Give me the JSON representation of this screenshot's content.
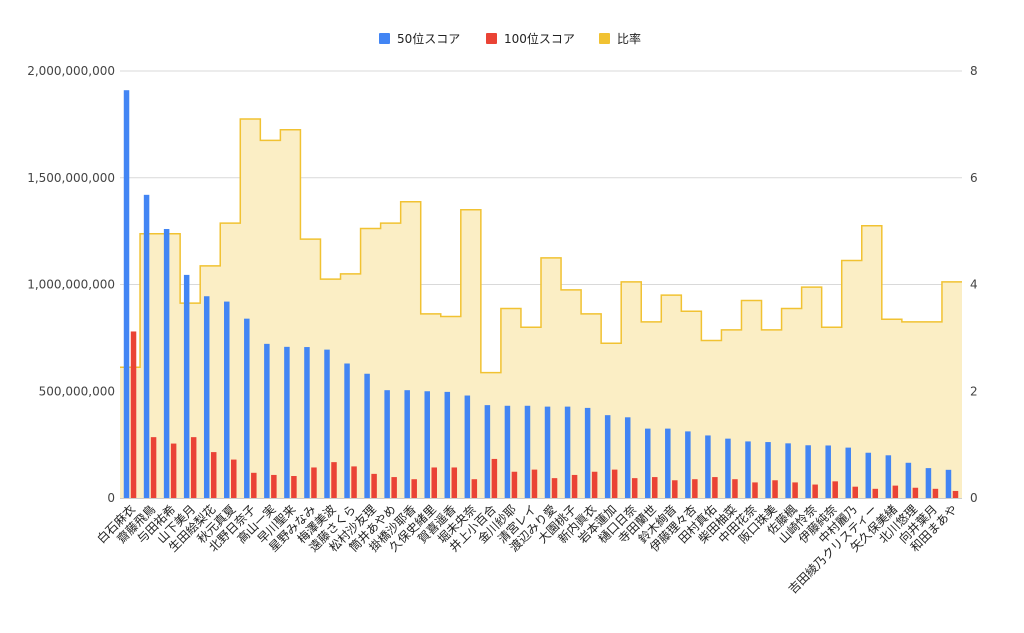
{
  "chart_data": {
    "type": "bar",
    "legend_position": "top",
    "grid": true,
    "colors": {
      "s50": "#4285f4",
      "s100": "#ea4335",
      "ratio_line": "#f1c232",
      "ratio_fill": "#fbeec5"
    },
    "categories": [
      "白石麻衣",
      "齋藤飛鳥",
      "与田祐希",
      "山下美月",
      "生田絵梨花",
      "秋元真夏",
      "北野日奈子",
      "高山一実",
      "早川聖来",
      "星野みなみ",
      "梅澤美波",
      "遠藤さくら",
      "松村沙友理",
      "筒井あやめ",
      "掛橋沙耶香",
      "久保史緒里",
      "賀喜遥香",
      "堀未央奈",
      "井上小百合",
      "金川紗耶",
      "清宮レイ",
      "渡辺みり愛",
      "大園桃子",
      "新内眞衣",
      "岩本蓮加",
      "樋口日奈",
      "寺田蘭世",
      "鈴木絢音",
      "伊藤理々杏",
      "田村真佑",
      "柴田柚菜",
      "中田花奈",
      "阪口珠美",
      "佐藤楓",
      "山崎怜奈",
      "伊藤純奈",
      "中村麗乃",
      "吉田綾乃クリスティー",
      "矢久保美緒",
      "北川悠理",
      "向井葉月",
      "和田まあや"
    ],
    "series": [
      {
        "name": "50位スコア",
        "axis": "left",
        "values": [
          1910000000,
          1420000000,
          1260000000,
          1045000000,
          945000000,
          920000000,
          840000000,
          722000000,
          708000000,
          707000000,
          695000000,
          630000000,
          582000000,
          505000000,
          505000000,
          500000000,
          497000000,
          480000000,
          435000000,
          432000000,
          432000000,
          428000000,
          428000000,
          422000000,
          388000000,
          378000000,
          325000000,
          325000000,
          312000000,
          293000000,
          278000000,
          265000000,
          262000000,
          256000000,
          247000000,
          246000000,
          236000000,
          212000000,
          200000000,
          165000000,
          140000000,
          132000000
        ]
      },
      {
        "name": "100位スコア",
        "axis": "left",
        "values": [
          780000000,
          285000000,
          255000000,
          285000000,
          215000000,
          180000000,
          118000000,
          108000000,
          103000000,
          143000000,
          168000000,
          148000000,
          113000000,
          98000000,
          88000000,
          143000000,
          143000000,
          88000000,
          183000000,
          123000000,
          133000000,
          93000000,
          108000000,
          123000000,
          133000000,
          93000000,
          98000000,
          83000000,
          88000000,
          98000000,
          88000000,
          73000000,
          83000000,
          73000000,
          63000000,
          78000000,
          53000000,
          43000000,
          58000000,
          48000000,
          43000000,
          33000000
        ]
      },
      {
        "name": "比率",
        "axis": "right",
        "values": [
          2.45,
          4.95,
          4.95,
          3.65,
          4.35,
          5.15,
          7.1,
          6.7,
          6.9,
          4.85,
          4.1,
          4.2,
          5.05,
          5.15,
          5.55,
          3.45,
          3.4,
          5.4,
          2.35,
          3.55,
          3.2,
          4.5,
          3.9,
          3.45,
          2.9,
          4.05,
          3.3,
          3.8,
          3.5,
          2.95,
          3.15,
          3.7,
          3.15,
          3.55,
          3.95,
          3.2,
          4.45,
          5.1,
          3.35,
          3.3,
          3.3,
          4.05
        ]
      }
    ],
    "y_left": {
      "min": 0,
      "max": 2000000000,
      "ticks": [
        "0",
        "500,000,000",
        "1,000,000,000",
        "1,500,000,000",
        "2,000,000,000"
      ]
    },
    "y_right": {
      "min": 0,
      "max": 8,
      "ticks": [
        "0",
        "2",
        "4",
        "6",
        "8"
      ]
    }
  }
}
